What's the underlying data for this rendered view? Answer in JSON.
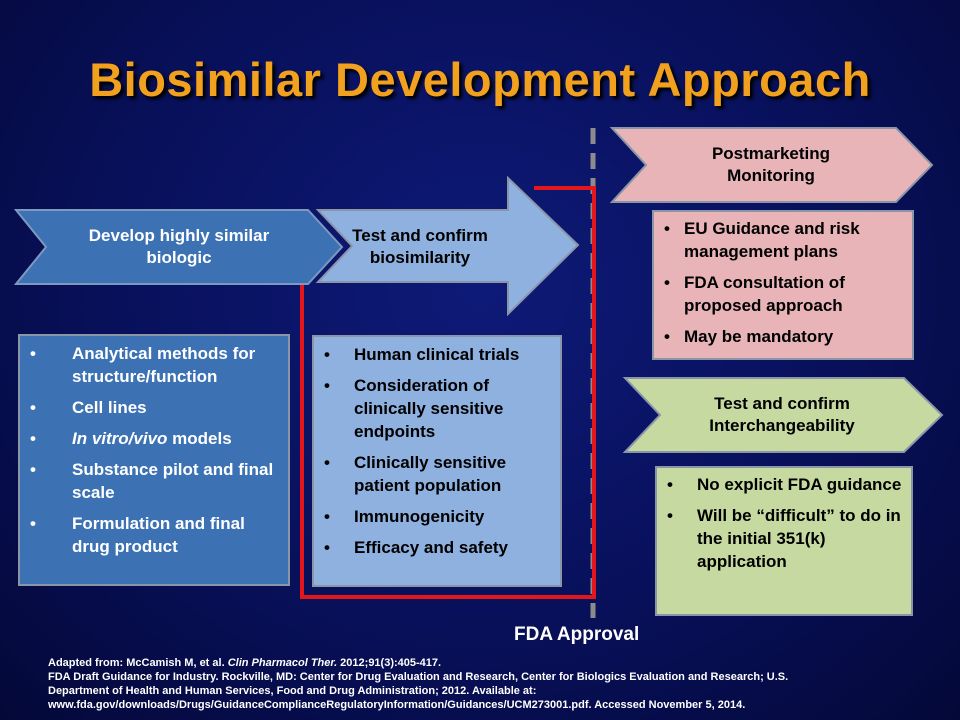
{
  "title": "Biosimilar Development Approach",
  "arrows": {
    "develop": {
      "line1": "Develop highly similar",
      "line2": "biologic"
    },
    "test_biosimilarity": {
      "line1": "Test and confirm",
      "line2": "biosimilarity"
    },
    "postmarketing": {
      "line1": "Postmarketing",
      "line2": "Monitoring"
    },
    "interchangeability": {
      "line1": "Test and confirm",
      "line2": "Interchangeability"
    }
  },
  "boxes": {
    "develop": [
      "Analytical methods for structure/function",
      "Cell lines",
      {
        "italic": "In vitro/vivo",
        "rest": " models"
      },
      "Substance pilot and final scale",
      "Formulation and final drug product"
    ],
    "clinical": [
      "Human clinical trials",
      "Consideration of clinically sensitive endpoints",
      "Clinically sensitive patient population",
      "Immunogenicity",
      "Efficacy and safety"
    ],
    "postmarketing": [
      "EU Guidance and risk management plans",
      "FDA consultation of proposed approach",
      "May be mandatory"
    ],
    "interchangeability": [
      "No explicit FDA guidance",
      "Will be “difficult” to do in the initial 351(k) application"
    ]
  },
  "bullet_char": "•",
  "fda_approval": "FDA Approval",
  "citation": {
    "prefix": "Adapted from: McCamish M, et al. ",
    "journal": "Clin Pharmacol Ther.",
    "ref": " 2012;91(3):405-417.",
    "line2": "FDA Draft Guidance for Industry.  Rockville, MD: Center for Drug Evaluation and Research, Center for Biologics Evaluation and Research; U.S.",
    "line3": "Department of Health and Human Services, Food and Drug Administration; 2012. Available at:",
    "line4": "www.fda.gov/downloads/Drugs/GuidanceComplianceRegulatoryInformation/Guidances/UCM273001.pdf.  Accessed November 5, 2014."
  },
  "colors": {
    "title": "#f2a11f",
    "develop_arrow": "#3c72b4",
    "biosim_arrow": "#8fb1e0",
    "post_arrow": "#e8b4b8",
    "interch_arrow": "#c6d9a0",
    "red_frame": "#e4161c",
    "divider": "#8c8c8c"
  }
}
